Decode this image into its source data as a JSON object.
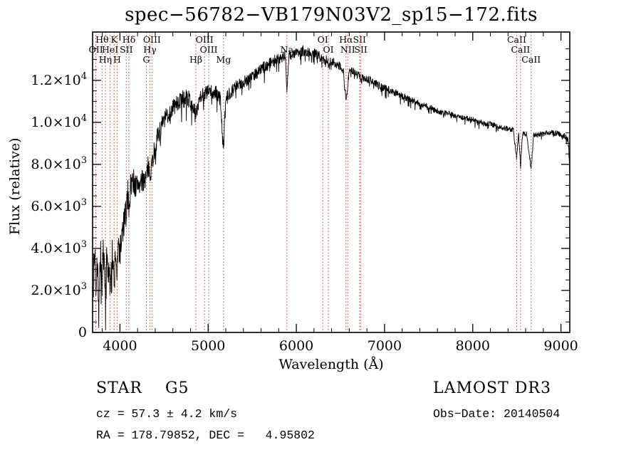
{
  "title": "spec−56782−VB179N03V2_sp15−172.fits",
  "footer": {
    "class_label": "STAR    G5",
    "cz": "cz = 57.3 ± 4.2 km/s",
    "ra_dec": "RA = 178.79852, DEC =   4.95802",
    "survey": "LAMOST DR3",
    "obs_date": "Obs−Date: 20140504"
  },
  "colors": {
    "background": "#ffffff",
    "spectrum_line": "#000000",
    "feature_line": "#a84a3c",
    "frame": "#000000",
    "text": "#000000"
  },
  "chart_data": {
    "type": "line",
    "title": "spec−56782−VB179N03V2_sp15−172.fits",
    "xlabel": "Wavelength (Å)",
    "ylabel": "Flux (relative)",
    "xlim": [
      3690,
      9100
    ],
    "ylim": [
      0,
      14300
    ],
    "grid": false,
    "legend": "none",
    "xticks": [
      4000,
      5000,
      6000,
      7000,
      8000,
      9000
    ],
    "x_minor_step": 200,
    "yticks": [
      {
        "value": 0,
        "label": "0"
      },
      {
        "value": 2000,
        "label": "2.0×10^3"
      },
      {
        "value": 4000,
        "label": "4.0×10^3"
      },
      {
        "value": 6000,
        "label": "6.0×10^3"
      },
      {
        "value": 8000,
        "label": "8.0×10^3"
      },
      {
        "value": 10000,
        "label": "1.0×10^4"
      },
      {
        "value": 12000,
        "label": "1.2×10^4"
      }
    ],
    "y_minor_step": 500,
    "series_name": "flux",
    "sample_step": 3,
    "noise_seed": 7,
    "flux_envelope_points": [
      [
        3700,
        2600
      ],
      [
        3715,
        3900
      ],
      [
        3727,
        2100
      ],
      [
        3740,
        3600
      ],
      [
        3760,
        1900
      ],
      [
        3780,
        3700
      ],
      [
        3798,
        2300
      ],
      [
        3815,
        4000
      ],
      [
        3835,
        1500
      ],
      [
        3850,
        3700
      ],
      [
        3870,
        2900
      ],
      [
        3889,
        2100
      ],
      [
        3905,
        3900
      ],
      [
        3920,
        3400
      ],
      [
        3934,
        2100
      ],
      [
        3950,
        3900
      ],
      [
        3968,
        2700
      ],
      [
        3985,
        4200
      ],
      [
        4000,
        3800
      ],
      [
        4020,
        4500
      ],
      [
        4050,
        5300
      ],
      [
        4072,
        5800
      ],
      [
        4090,
        6600
      ],
      [
        4102,
        6000
      ],
      [
        4120,
        7000
      ],
      [
        4150,
        7300
      ],
      [
        4180,
        6900
      ],
      [
        4210,
        7150
      ],
      [
        4240,
        7000
      ],
      [
        4270,
        7350
      ],
      [
        4300,
        7300
      ],
      [
        4320,
        7900
      ],
      [
        4340,
        7600
      ],
      [
        4365,
        8100
      ],
      [
        4400,
        8900
      ],
      [
        4450,
        9600
      ],
      [
        4500,
        10100
      ],
      [
        4550,
        10400
      ],
      [
        4600,
        10700
      ],
      [
        4650,
        10900
      ],
      [
        4700,
        11100
      ],
      [
        4750,
        11200
      ],
      [
        4800,
        11050
      ],
      [
        4861,
        10300
      ],
      [
        4900,
        11250
      ],
      [
        4950,
        11350
      ],
      [
        5007,
        11450
      ],
      [
        5050,
        11400
      ],
      [
        5100,
        11350
      ],
      [
        5140,
        11100
      ],
      [
        5172,
        8600
      ],
      [
        5200,
        11000
      ],
      [
        5250,
        11450
      ],
      [
        5300,
        11650
      ],
      [
        5350,
        11750
      ],
      [
        5400,
        11950
      ],
      [
        5450,
        12050
      ],
      [
        5500,
        12250
      ],
      [
        5550,
        12350
      ],
      [
        5600,
        12550
      ],
      [
        5650,
        12650
      ],
      [
        5700,
        12850
      ],
      [
        5750,
        12950
      ],
      [
        5800,
        13050
      ],
      [
        5850,
        13150
      ],
      [
        5875,
        13200
      ],
      [
        5893,
        11400
      ],
      [
        5915,
        13150
      ],
      [
        5960,
        13250
      ],
      [
        6020,
        13350
      ],
      [
        6080,
        13400
      ],
      [
        6140,
        13350
      ],
      [
        6200,
        13300
      ],
      [
        6260,
        13150
      ],
      [
        6300,
        12950
      ],
      [
        6340,
        13000
      ],
      [
        6363,
        12800
      ],
      [
        6400,
        12900
      ],
      [
        6450,
        12800
      ],
      [
        6500,
        12700
      ],
      [
        6530,
        12500
      ],
      [
        6563,
        11000
      ],
      [
        6600,
        12500
      ],
      [
        6650,
        12400
      ],
      [
        6700,
        12250
      ],
      [
        6731,
        12100
      ],
      [
        6780,
        12100
      ],
      [
        6840,
        12000
      ],
      [
        6900,
        11850
      ],
      [
        6960,
        11700
      ],
      [
        7020,
        11600
      ],
      [
        7100,
        11450
      ],
      [
        7180,
        11300
      ],
      [
        7260,
        11150
      ],
      [
        7340,
        11000
      ],
      [
        7420,
        10850
      ],
      [
        7500,
        10750
      ],
      [
        7580,
        10550
      ],
      [
        7660,
        10450
      ],
      [
        7740,
        10400
      ],
      [
        7820,
        10300
      ],
      [
        7900,
        10200
      ],
      [
        7980,
        10150
      ],
      [
        8060,
        10050
      ],
      [
        8140,
        9950
      ],
      [
        8220,
        9900
      ],
      [
        8300,
        9800
      ],
      [
        8380,
        9700
      ],
      [
        8460,
        9650
      ],
      [
        8498,
        8300
      ],
      [
        8520,
        9550
      ],
      [
        8542,
        7900
      ],
      [
        8565,
        9500
      ],
      [
        8610,
        9450
      ],
      [
        8662,
        7800
      ],
      [
        8690,
        9400
      ],
      [
        8740,
        9400
      ],
      [
        8800,
        9450
      ],
      [
        8860,
        9500
      ],
      [
        8920,
        9500
      ],
      [
        8970,
        9450
      ],
      [
        9020,
        9400
      ],
      [
        9060,
        9300
      ],
      [
        9085,
        9100
      ],
      [
        9100,
        7400
      ]
    ],
    "noise_amplitude_points": [
      [
        3700,
        950
      ],
      [
        3850,
        850
      ],
      [
        4000,
        750
      ],
      [
        4150,
        650
      ],
      [
        4300,
        550
      ],
      [
        4500,
        450
      ],
      [
        4700,
        420
      ],
      [
        4900,
        400
      ],
      [
        5100,
        380
      ],
      [
        5300,
        340
      ],
      [
        5500,
        310
      ],
      [
        5700,
        280
      ],
      [
        5900,
        260
      ],
      [
        6100,
        250
      ],
      [
        6300,
        230
      ],
      [
        6500,
        220
      ],
      [
        6700,
        200
      ],
      [
        6900,
        190
      ],
      [
        7100,
        170
      ],
      [
        7300,
        160
      ],
      [
        7500,
        150
      ],
      [
        7700,
        140
      ],
      [
        7900,
        135
      ],
      [
        8100,
        130
      ],
      [
        8300,
        125
      ],
      [
        8500,
        120
      ],
      [
        8700,
        120
      ],
      [
        8900,
        130
      ],
      [
        9100,
        150
      ]
    ],
    "features": [
      {
        "label": "OII",
        "wavelength": 3727,
        "row": 1
      },
      {
        "label": "Hθ",
        "wavelength": 3798,
        "row": 0
      },
      {
        "label": "Hη",
        "wavelength": 3835,
        "row": 2
      },
      {
        "label": "HeI",
        "wavelength": 3889,
        "row": 1
      },
      {
        "label": "K",
        "wavelength": 3934,
        "row": 0
      },
      {
        "label": "H",
        "wavelength": 3968,
        "row": 2
      },
      {
        "label": "SII",
        "wavelength": 4072,
        "row": 1
      },
      {
        "label": "Hδ",
        "wavelength": 4102,
        "row": 0
      },
      {
        "label": "G",
        "wavelength": 4300,
        "row": 2
      },
      {
        "label": "Hγ",
        "wavelength": 4340,
        "row": 1
      },
      {
        "label": "OIII",
        "wavelength": 4363,
        "row": 0
      },
      {
        "label": "Hβ",
        "wavelength": 4861,
        "row": 2
      },
      {
        "label": "OIII",
        "wavelength": 4959,
        "row": 0
      },
      {
        "label": "OIII",
        "wavelength": 5007,
        "row": 1
      },
      {
        "label": "Mg",
        "wavelength": 5175,
        "row": 2
      },
      {
        "label": "Na",
        "wavelength": 5893,
        "row": 1
      },
      {
        "label": "OI",
        "wavelength": 6300,
        "row": 0
      },
      {
        "label": "OI",
        "wavelength": 6363,
        "row": 1
      },
      {
        "label": "Hα",
        "wavelength": 6563,
        "row": 0
      },
      {
        "label": "NII",
        "wavelength": 6583,
        "row": 1
      },
      {
        "label": "SII",
        "wavelength": 6716,
        "row": 0
      },
      {
        "label": "SII",
        "wavelength": 6731,
        "row": 1
      },
      {
        "label": "CaII",
        "wavelength": 8498,
        "row": 0
      },
      {
        "label": "CaII",
        "wavelength": 8542,
        "row": 1
      },
      {
        "label": "CaII",
        "wavelength": 8662,
        "row": 2
      }
    ]
  }
}
